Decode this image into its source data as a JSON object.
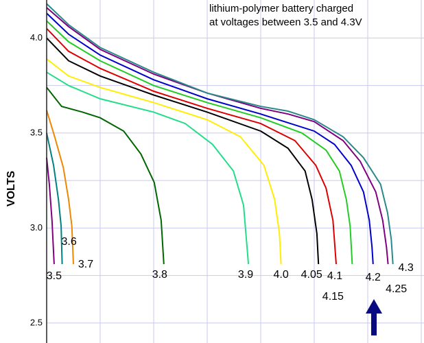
{
  "chart_data": {
    "type": "line",
    "title": "lithium-polymer battery charged",
    "subtitle": "at voltages between 3.5 and 4.3V",
    "y_label": "VOLTS",
    "xlim": [
      0,
      7
    ],
    "x_gridlines": [
      1,
      2,
      3,
      4,
      5,
      6,
      7
    ],
    "ylim": [
      2.4,
      4.2
    ],
    "yticks": [
      {
        "value": 2.5,
        "label": "2.5"
      },
      {
        "value": 3,
        "label": "3.0"
      },
      {
        "value": 3.5,
        "label": "3.5"
      },
      {
        "value": 4,
        "label": "4.0"
      }
    ],
    "minor_yticks": [
      2.75,
      3.25,
      3.75
    ],
    "grid": true,
    "series": [
      {
        "name": "3.5",
        "color": "#800080",
        "x": [
          0,
          0.05,
          0.1,
          0.14
        ],
        "values": [
          3.37,
          3.23,
          3.04,
          2.81
        ]
      },
      {
        "name": "3.6",
        "color": "#008080",
        "x": [
          0,
          0.13,
          0.22,
          0.27,
          0.29
        ],
        "values": [
          3.5,
          3.33,
          3.15,
          3.01,
          2.81
        ]
      },
      {
        "name": "3.7",
        "color": "#ee8800",
        "x": [
          0,
          0.15,
          0.31,
          0.41,
          0.47,
          0.5
        ],
        "values": [
          3.62,
          3.48,
          3.32,
          3.15,
          3.01,
          2.81
        ]
      },
      {
        "name": "3.8",
        "color": "#006600",
        "x": [
          0,
          0.28,
          0.67,
          1,
          1.44,
          1.76,
          2.01,
          2.14,
          2.19
        ],
        "values": [
          3.74,
          3.64,
          3.61,
          3.58,
          3.51,
          3.39,
          3.24,
          3.04,
          2.81
        ]
      },
      {
        "name": "3.9",
        "color": "#22dd88",
        "x": [
          0,
          0.41,
          1,
          2,
          2.59,
          3.1,
          3.49,
          3.68,
          3.77
        ],
        "values": [
          3.82,
          3.75,
          3.68,
          3.61,
          3.55,
          3.44,
          3.3,
          3.12,
          2.81
        ]
      },
      {
        "name": "4.0",
        "color": "#ffee00",
        "x": [
          0,
          0.41,
          1,
          2,
          3,
          3.62,
          4.06,
          4.26,
          4.35,
          4.38
        ],
        "values": [
          3.89,
          3.8,
          3.74,
          3.66,
          3.57,
          3.48,
          3.33,
          3.15,
          2.97,
          2.81
        ]
      },
      {
        "name": "4.05",
        "color": "#000000",
        "x": [
          0,
          0.41,
          1,
          2,
          3,
          4,
          4.51,
          4.83,
          4.96,
          5.05,
          5.08
        ],
        "values": [
          4.0,
          3.88,
          3.8,
          3.7,
          3.61,
          3.51,
          3.42,
          3.3,
          3.15,
          2.97,
          2.81
        ]
      },
      {
        "name": "4.1",
        "color": "#dd0000",
        "x": [
          0,
          0.41,
          1,
          2,
          3,
          4,
          4.64,
          5.03,
          5.22,
          5.35,
          5.41
        ],
        "values": [
          4.05,
          3.93,
          3.84,
          3.72,
          3.63,
          3.55,
          3.46,
          3.33,
          3.21,
          3.04,
          2.81
        ]
      },
      {
        "name": "4.15",
        "color": "#22cc22",
        "x": [
          0,
          0.41,
          1,
          2,
          3,
          4,
          4.77,
          5.22,
          5.47,
          5.6,
          5.67,
          5.71
        ],
        "values": [
          4.09,
          3.98,
          3.88,
          3.75,
          3.66,
          3.58,
          3.5,
          3.41,
          3.3,
          3.15,
          3.01,
          2.81
        ]
      },
      {
        "name": "4.2",
        "color": "#0000cc",
        "x": [
          0,
          0.41,
          1,
          2,
          3,
          4,
          5,
          5.38,
          5.69,
          5.92,
          6.03,
          6.08,
          6.1
        ],
        "values": [
          4.13,
          4.02,
          3.91,
          3.78,
          3.68,
          3.6,
          3.51,
          3.44,
          3.33,
          3.19,
          3.04,
          2.9,
          2.81
        ]
      },
      {
        "name": "4.25",
        "color": "#800080",
        "x": [
          0,
          0.41,
          1,
          2,
          3,
          4,
          4.51,
          5,
          5.54,
          5.86,
          6.15,
          6.28,
          6.35,
          6.38
        ],
        "values": [
          4.16,
          4.06,
          3.94,
          3.81,
          3.71,
          3.63,
          3.6,
          3.56,
          3.46,
          3.35,
          3.19,
          3.04,
          2.9,
          2.81
        ]
      },
      {
        "name": "4.3",
        "color": "#2a8a8a",
        "x": [
          0,
          0.41,
          1,
          2,
          3,
          4,
          4.51,
          5,
          5.54,
          5.92,
          6.24,
          6.37,
          6.44,
          6.47
        ],
        "values": [
          4.18,
          4.07,
          3.95,
          3.82,
          3.71,
          3.64,
          3.615,
          3.57,
          3.48,
          3.37,
          3.23,
          3.08,
          2.94,
          2.81
        ]
      }
    ]
  }
}
